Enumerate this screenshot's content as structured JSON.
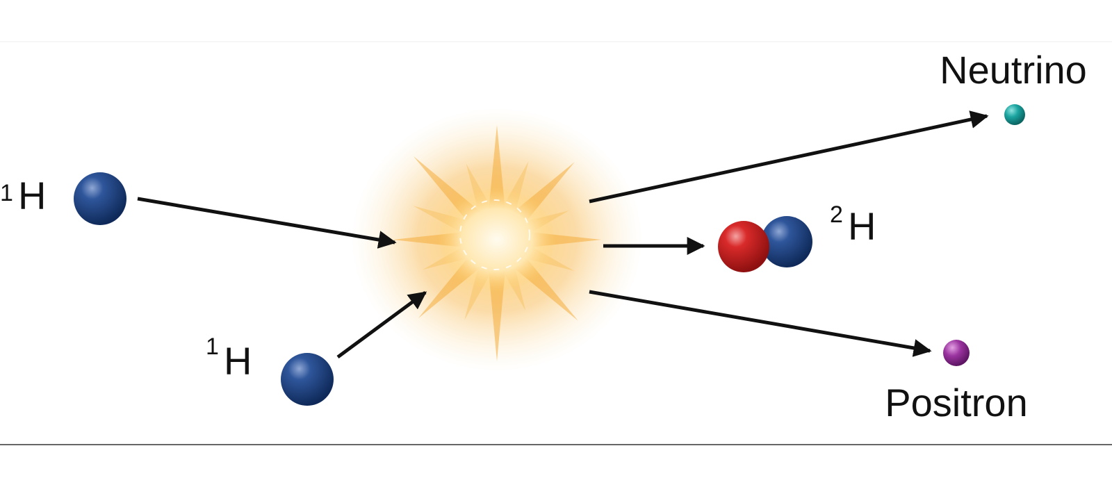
{
  "diagram": {
    "particles": {
      "proton_top": {
        "symbol": "H",
        "mass_number": "1",
        "color": "#1c3f7a"
      },
      "proton_bottom": {
        "symbol": "H",
        "mass_number": "1",
        "color": "#1c3f7a"
      },
      "deuterium": {
        "symbol": "H",
        "mass_number": "2",
        "proton_color": "#cc1f24",
        "neutron_color": "#1c3f7a"
      },
      "neutrino": {
        "label": "Neutrino",
        "color": "#16918f"
      },
      "positron": {
        "label": "Positron",
        "color": "#8a2a8a"
      }
    },
    "colors": {
      "arrow": "#111111",
      "flash_core": "#fff4d2",
      "flash_glow": "#f9b648",
      "frame_line": "#333333"
    }
  }
}
